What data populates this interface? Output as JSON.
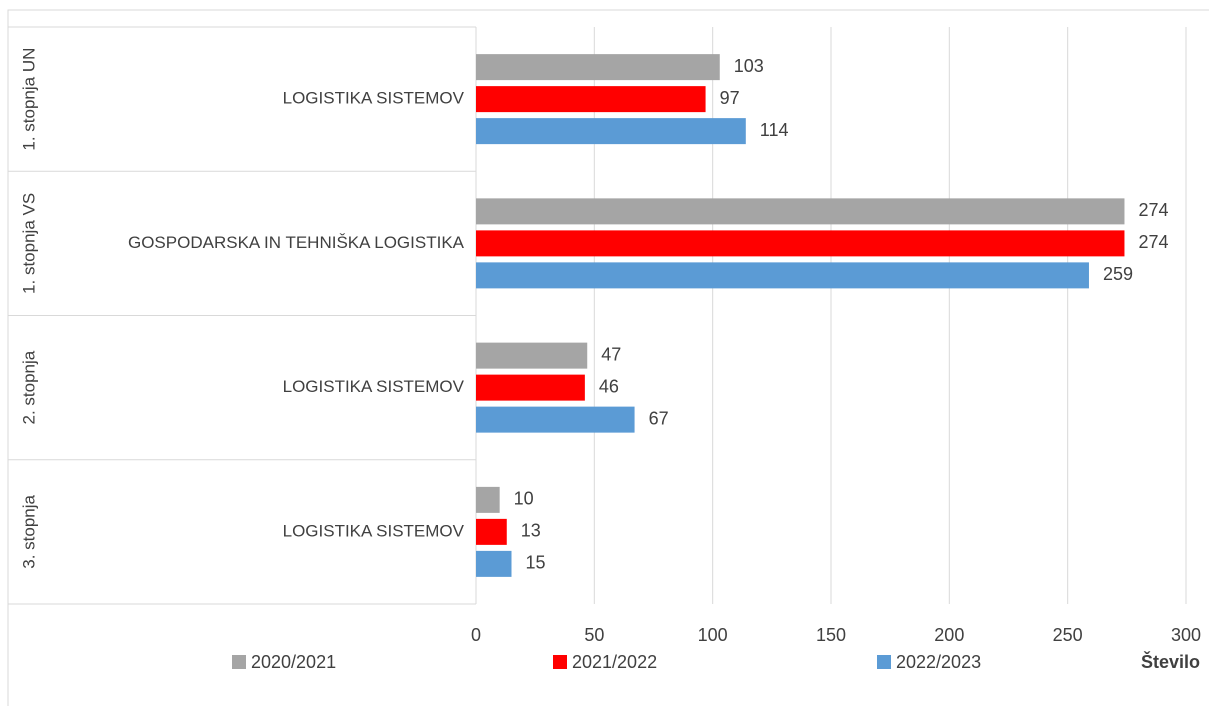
{
  "chart_data": {
    "type": "bar",
    "orientation": "horizontal",
    "groups": [
      "1. stopnja UN",
      "1. stopnja VS",
      "2. stopnja",
      "3. stopnja"
    ],
    "categories": [
      "LOGISTIKA SISTEMOV",
      "GOSPODARSKA IN TEHNIŠKA LOGISTIKA",
      "LOGISTIKA SISTEMOV",
      "LOGISTIKA SISTEMOV"
    ],
    "series": [
      {
        "name": "2020/2021",
        "color": "#a5a5a5",
        "values": [
          103,
          274,
          47,
          10
        ]
      },
      {
        "name": "2021/2022",
        "color": "#ff0000",
        "values": [
          97,
          274,
          46,
          13
        ]
      },
      {
        "name": "2022/2023",
        "color": "#5b9bd5",
        "values": [
          114,
          259,
          67,
          15
        ]
      }
    ],
    "xlabel": "Število",
    "xlim": [
      0,
      300
    ],
    "xticks": [
      0,
      50,
      100,
      150,
      200,
      250,
      300
    ],
    "grid": true
  }
}
